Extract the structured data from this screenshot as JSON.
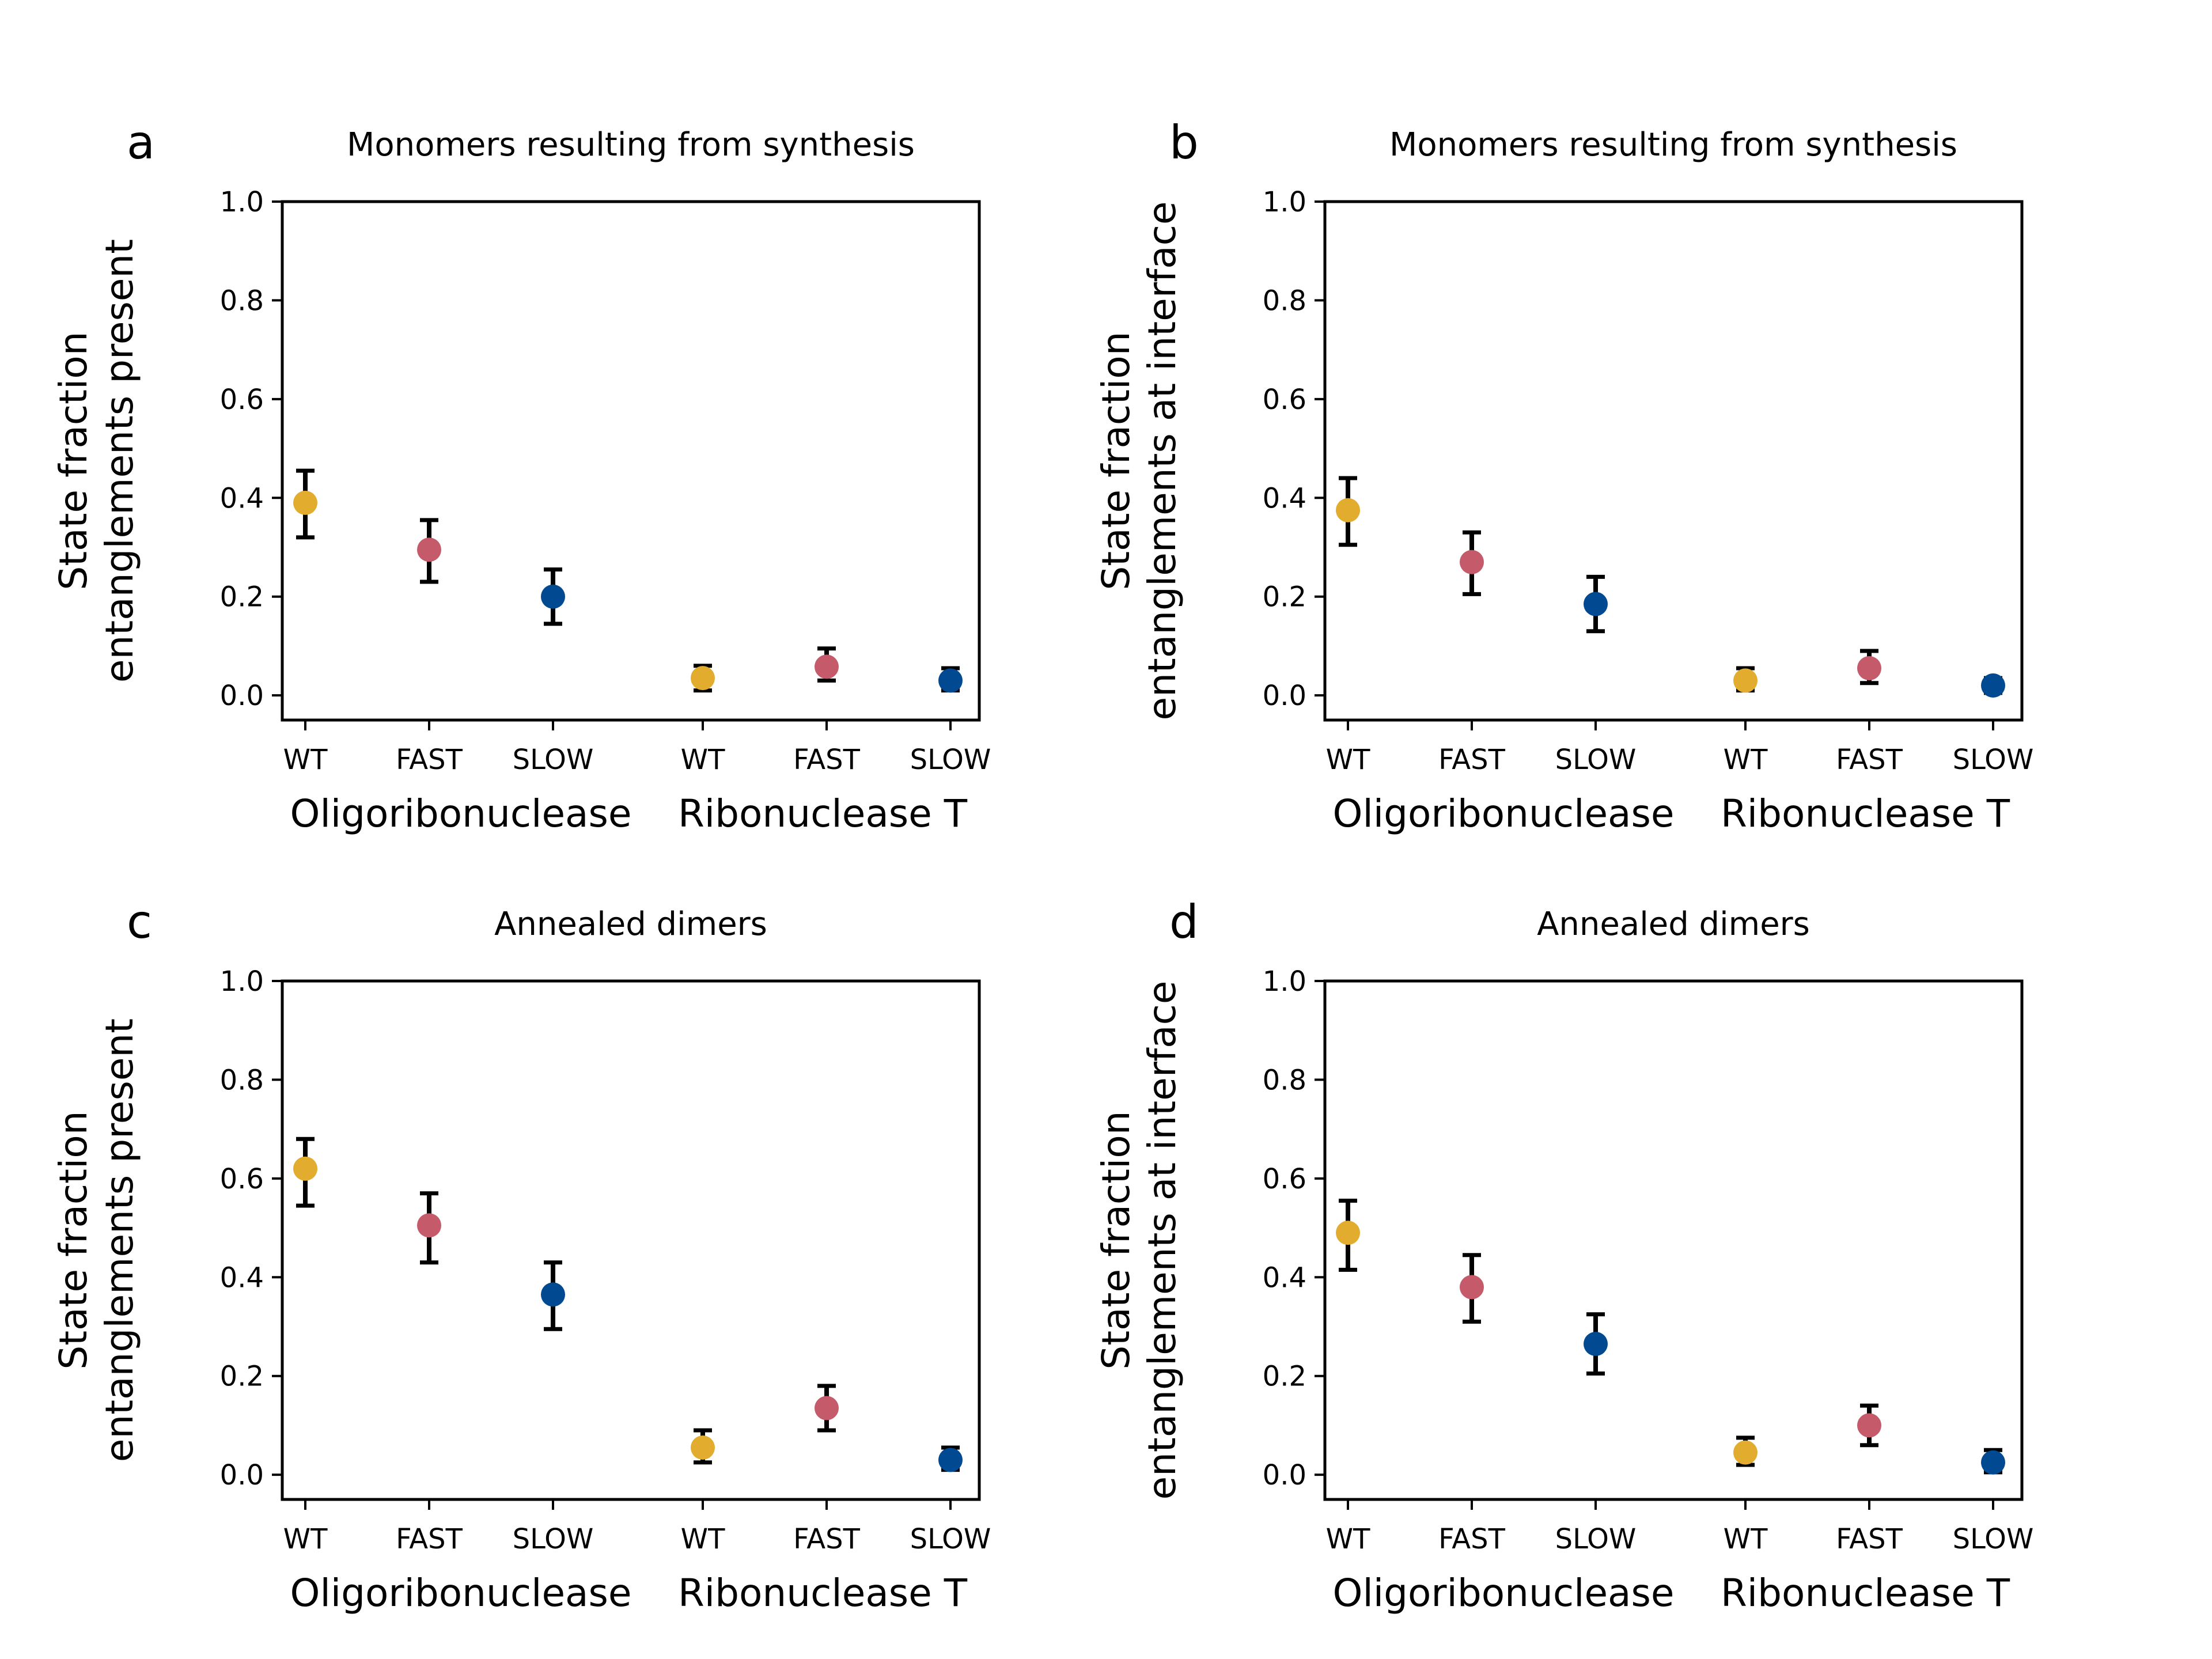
{
  "colors": {
    "WT": "#e2ac2e",
    "FAST": "#c45a6a",
    "SLOW": "#014a91",
    "errorbar": "#000000",
    "axis": "#000000"
  },
  "chart_data": [
    {
      "type": "scatter",
      "panel": "a",
      "title": "Monomers resulting from synthesis",
      "ylabel": [
        "State fraction",
        "entanglements present"
      ],
      "categories": [
        "WT",
        "FAST",
        "SLOW",
        "WT",
        "FAST",
        "SLOW"
      ],
      "groups": [
        "Oligoribonuclease",
        "Ribonuclease T"
      ],
      "yticks": [
        "0.0",
        "0.2",
        "0.4",
        "0.6",
        "0.8",
        "1.0"
      ],
      "ylim": [
        -0.05,
        1.0
      ],
      "grid": false,
      "points": [
        {
          "category": "WT",
          "group": "Oligoribonuclease",
          "y": 0.39,
          "err_low": 0.32,
          "err_high": 0.455
        },
        {
          "category": "FAST",
          "group": "Oligoribonuclease",
          "y": 0.295,
          "err_low": 0.23,
          "err_high": 0.355
        },
        {
          "category": "SLOW",
          "group": "Oligoribonuclease",
          "y": 0.2,
          "err_low": 0.145,
          "err_high": 0.255
        },
        {
          "category": "WT",
          "group": "Ribonuclease T",
          "y": 0.035,
          "err_low": 0.01,
          "err_high": 0.06
        },
        {
          "category": "FAST",
          "group": "Ribonuclease T",
          "y": 0.058,
          "err_low": 0.03,
          "err_high": 0.095
        },
        {
          "category": "SLOW",
          "group": "Ribonuclease T",
          "y": 0.03,
          "err_low": 0.01,
          "err_high": 0.055
        }
      ]
    },
    {
      "type": "scatter",
      "panel": "b",
      "title": "Monomers resulting from synthesis",
      "ylabel": [
        "State fraction",
        "entanglements at interface"
      ],
      "categories": [
        "WT",
        "FAST",
        "SLOW",
        "WT",
        "FAST",
        "SLOW"
      ],
      "groups": [
        "Oligoribonuclease",
        "Ribonuclease T"
      ],
      "yticks": [
        "0.0",
        "0.2",
        "0.4",
        "0.6",
        "0.8",
        "1.0"
      ],
      "ylim": [
        -0.05,
        1.0
      ],
      "grid": false,
      "points": [
        {
          "category": "WT",
          "group": "Oligoribonuclease",
          "y": 0.375,
          "err_low": 0.305,
          "err_high": 0.44
        },
        {
          "category": "FAST",
          "group": "Oligoribonuclease",
          "y": 0.27,
          "err_low": 0.205,
          "err_high": 0.33
        },
        {
          "category": "SLOW",
          "group": "Oligoribonuclease",
          "y": 0.185,
          "err_low": 0.13,
          "err_high": 0.24
        },
        {
          "category": "WT",
          "group": "Ribonuclease T",
          "y": 0.03,
          "err_low": 0.01,
          "err_high": 0.055
        },
        {
          "category": "FAST",
          "group": "Ribonuclease T",
          "y": 0.055,
          "err_low": 0.025,
          "err_high": 0.09
        },
        {
          "category": "SLOW",
          "group": "Ribonuclease T",
          "y": 0.02,
          "err_low": 0.005,
          "err_high": 0.035
        }
      ]
    },
    {
      "type": "scatter",
      "panel": "c",
      "title": "Annealed dimers",
      "ylabel": [
        "State fraction",
        "entanglements present"
      ],
      "categories": [
        "WT",
        "FAST",
        "SLOW",
        "WT",
        "FAST",
        "SLOW"
      ],
      "groups": [
        "Oligoribonuclease",
        "Ribonuclease T"
      ],
      "yticks": [
        "0.0",
        "0.2",
        "0.4",
        "0.6",
        "0.8",
        "1.0"
      ],
      "ylim": [
        -0.05,
        1.0
      ],
      "grid": false,
      "points": [
        {
          "category": "WT",
          "group": "Oligoribonuclease",
          "y": 0.62,
          "err_low": 0.545,
          "err_high": 0.68
        },
        {
          "category": "FAST",
          "group": "Oligoribonuclease",
          "y": 0.505,
          "err_low": 0.43,
          "err_high": 0.57
        },
        {
          "category": "SLOW",
          "group": "Oligoribonuclease",
          "y": 0.365,
          "err_low": 0.295,
          "err_high": 0.43
        },
        {
          "category": "WT",
          "group": "Ribonuclease T",
          "y": 0.055,
          "err_low": 0.025,
          "err_high": 0.09
        },
        {
          "category": "FAST",
          "group": "Ribonuclease T",
          "y": 0.135,
          "err_low": 0.09,
          "err_high": 0.18
        },
        {
          "category": "SLOW",
          "group": "Ribonuclease T",
          "y": 0.03,
          "err_low": 0.01,
          "err_high": 0.055
        }
      ]
    },
    {
      "type": "scatter",
      "panel": "d",
      "title": "Annealed dimers",
      "ylabel": [
        "State fraction",
        "entanglements at interface"
      ],
      "categories": [
        "WT",
        "FAST",
        "SLOW",
        "WT",
        "FAST",
        "SLOW"
      ],
      "groups": [
        "Oligoribonuclease",
        "Ribonuclease T"
      ],
      "yticks": [
        "0.0",
        "0.2",
        "0.4",
        "0.6",
        "0.8",
        "1.0"
      ],
      "ylim": [
        -0.05,
        1.0
      ],
      "grid": false,
      "points": [
        {
          "category": "WT",
          "group": "Oligoribonuclease",
          "y": 0.49,
          "err_low": 0.415,
          "err_high": 0.555
        },
        {
          "category": "FAST",
          "group": "Oligoribonuclease",
          "y": 0.38,
          "err_low": 0.31,
          "err_high": 0.445
        },
        {
          "category": "SLOW",
          "group": "Oligoribonuclease",
          "y": 0.265,
          "err_low": 0.205,
          "err_high": 0.325
        },
        {
          "category": "WT",
          "group": "Ribonuclease T",
          "y": 0.045,
          "err_low": 0.02,
          "err_high": 0.075
        },
        {
          "category": "FAST",
          "group": "Ribonuclease T",
          "y": 0.1,
          "err_low": 0.06,
          "err_high": 0.14
        },
        {
          "category": "SLOW",
          "group": "Ribonuclease T",
          "y": 0.025,
          "err_low": 0.005,
          "err_high": 0.05
        }
      ]
    }
  ]
}
